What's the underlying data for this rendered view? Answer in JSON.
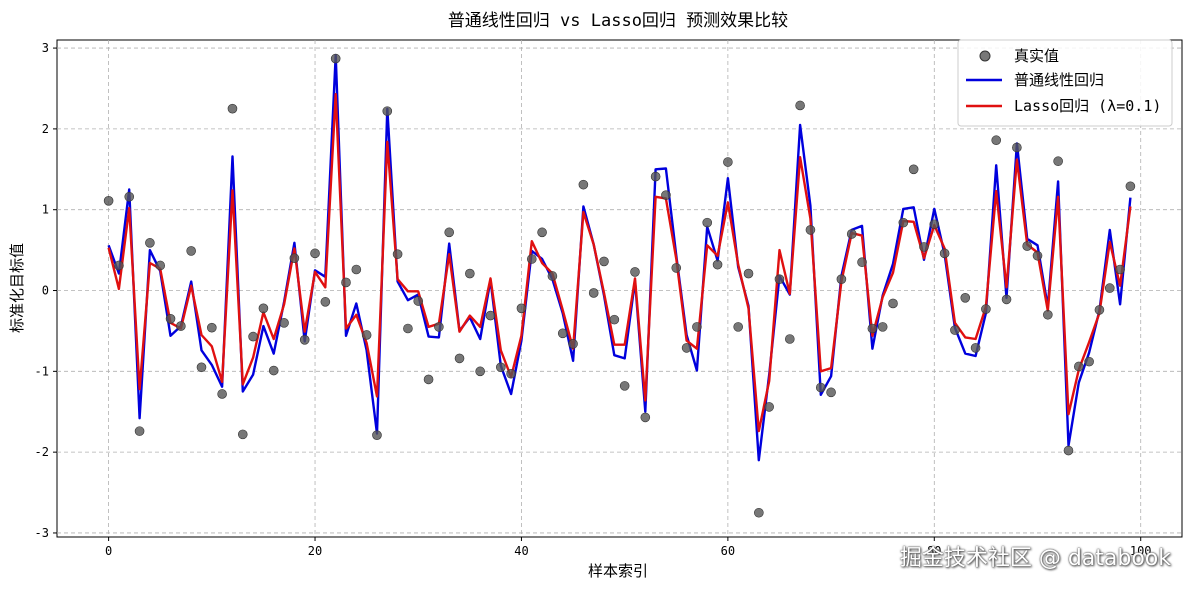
{
  "chart_data": {
    "type": "line",
    "title": "普通线性回归 vs Lasso回归 预测效果比较",
    "xlabel": "样本索引",
    "ylabel": "标准化目标值",
    "xlim": [
      -5,
      104
    ],
    "ylim": [
      -3.05,
      3.1
    ],
    "xticks": [
      0,
      20,
      40,
      60,
      80,
      100
    ],
    "yticks": [
      -3,
      -2,
      -1,
      0,
      1,
      2,
      3
    ],
    "grid": true,
    "legend_position": "top-right",
    "series": [
      {
        "name": "真实值",
        "kind": "scatter",
        "color": "#555555",
        "values": [
          1.11,
          0.31,
          1.16,
          -1.74,
          0.59,
          0.31,
          -0.35,
          -0.44,
          0.49,
          -0.95,
          -0.46,
          -1.28,
          2.25,
          -1.78,
          -0.57,
          -0.22,
          -0.99,
          -0.4,
          0.4,
          -0.61,
          0.46,
          -0.14,
          2.87,
          0.1,
          0.26,
          -0.55,
          -1.79,
          2.22,
          0.45,
          -0.47,
          -0.13,
          -1.1,
          -0.45,
          0.72,
          -0.84,
          0.21,
          -1.0,
          -0.31,
          -0.95,
          -1.03,
          -0.22,
          0.39,
          0.72,
          0.18,
          -0.53,
          -0.66,
          1.31,
          -0.03,
          0.36,
          -0.36,
          -1.18,
          0.23,
          -1.57,
          1.41,
          1.18,
          0.28,
          -0.71,
          -0.45,
          0.84,
          0.32,
          1.59,
          -0.45,
          0.21,
          -2.75,
          -1.44,
          0.14,
          -0.6,
          2.29,
          0.75,
          -1.2,
          -1.26,
          0.14,
          0.7,
          0.35,
          -0.47,
          -0.45,
          -0.16,
          0.84,
          1.5,
          0.54,
          0.82,
          0.46,
          -0.49,
          -0.09,
          -0.71,
          -0.23,
          1.86,
          -0.11,
          1.77,
          0.55,
          0.43,
          -0.3,
          1.6,
          -1.98,
          -0.94,
          -0.88,
          -0.24,
          0.03,
          0.26,
          1.29
        ]
      },
      {
        "name": "普通线性回归",
        "kind": "line",
        "color": "#0000dd",
        "values": [
          0.56,
          0.21,
          1.25,
          -1.58,
          0.5,
          0.24,
          -0.56,
          -0.44,
          0.11,
          -0.74,
          -0.92,
          -1.19,
          1.66,
          -1.25,
          -1.04,
          -0.44,
          -0.78,
          -0.14,
          0.59,
          -0.63,
          0.25,
          0.17,
          2.91,
          -0.56,
          -0.16,
          -0.74,
          -1.77,
          2.25,
          0.11,
          -0.12,
          -0.05,
          -0.57,
          -0.58,
          0.58,
          -0.5,
          -0.33,
          -0.6,
          0.13,
          -0.93,
          -1.28,
          -0.62,
          0.49,
          0.39,
          0.14,
          -0.28,
          -0.87,
          1.04,
          0.57,
          -0.06,
          -0.8,
          -0.84,
          0.12,
          -1.5,
          1.5,
          1.51,
          0.43,
          -0.55,
          -0.99,
          0.79,
          0.37,
          1.39,
          0.29,
          -0.19,
          -2.1,
          -1.04,
          0.18,
          -0.05,
          2.05,
          1.05,
          -1.29,
          -1.06,
          0.18,
          0.75,
          0.8,
          -0.72,
          -0.06,
          0.33,
          1.01,
          1.03,
          0.38,
          1.01,
          0.45,
          -0.46,
          -0.78,
          -0.81,
          -0.28,
          1.55,
          -0.09,
          1.82,
          0.64,
          0.56,
          -0.2,
          1.35,
          -1.92,
          -1.14,
          -0.77,
          -0.25,
          0.75,
          -0.17,
          1.15
        ]
      },
      {
        "name": "Lasso回归 (λ=0.1)",
        "kind": "line",
        "color": "#e01010",
        "values": [
          0.53,
          0.02,
          1.02,
          -1.22,
          0.34,
          0.27,
          -0.4,
          -0.47,
          0.06,
          -0.55,
          -0.69,
          -1.13,
          1.24,
          -1.16,
          -0.83,
          -0.27,
          -0.6,
          -0.17,
          0.52,
          -0.51,
          0.23,
          0.04,
          2.43,
          -0.47,
          -0.3,
          -0.65,
          -1.31,
          1.84,
          0.14,
          -0.01,
          -0.01,
          -0.45,
          -0.41,
          0.45,
          -0.51,
          -0.31,
          -0.45,
          0.15,
          -0.74,
          -1.07,
          -0.56,
          0.61,
          0.34,
          0.21,
          -0.24,
          -0.72,
          0.97,
          0.57,
          -0.03,
          -0.67,
          -0.67,
          0.15,
          -1.36,
          1.16,
          1.14,
          0.39,
          -0.62,
          -0.72,
          0.56,
          0.43,
          1.09,
          0.32,
          -0.22,
          -1.74,
          -1.12,
          0.5,
          -0.04,
          1.65,
          0.89,
          -1.0,
          -0.96,
          0.11,
          0.71,
          0.68,
          -0.56,
          -0.08,
          0.22,
          0.86,
          0.85,
          0.4,
          0.81,
          0.52,
          -0.4,
          -0.58,
          -0.6,
          -0.2,
          1.23,
          0.04,
          1.62,
          0.57,
          0.47,
          -0.25,
          1.16,
          -1.53,
          -0.98,
          -0.64,
          -0.28,
          0.6,
          0.06,
          1.04
        ]
      }
    ]
  },
  "watermark": "掘金技术社区 @ databook"
}
